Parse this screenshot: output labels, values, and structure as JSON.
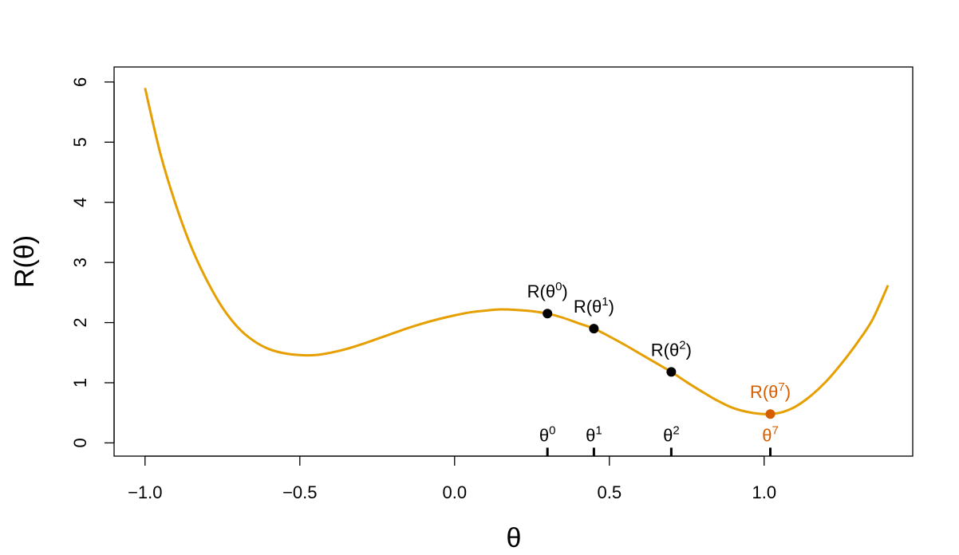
{
  "chart_data": {
    "type": "line",
    "xlabel": "θ",
    "ylabel": "R(θ)",
    "xlim": [
      -1.1,
      1.48
    ],
    "ylim": [
      -0.22,
      6.25
    ],
    "xticks": [
      -1.0,
      -0.5,
      0.0,
      0.5,
      1.0
    ],
    "xtick_labels": [
      "−1.0",
      "−0.5",
      "0.0",
      "0.5",
      "1.0"
    ],
    "yticks": [
      0,
      1,
      2,
      3,
      4,
      5,
      6
    ],
    "ytick_labels": [
      "0",
      "1",
      "2",
      "3",
      "4",
      "5",
      "6"
    ],
    "grid": false,
    "curve_color": "#E69F00",
    "highlight_color": "#D55E00",
    "curve": {
      "x": [
        -1.0,
        -0.95,
        -0.9,
        -0.85,
        -0.8,
        -0.75,
        -0.7,
        -0.65,
        -0.6,
        -0.55,
        -0.5,
        -0.45,
        -0.4,
        -0.35,
        -0.3,
        -0.25,
        -0.2,
        -0.15,
        -0.1,
        -0.05,
        0.0,
        0.05,
        0.1,
        0.15,
        0.2,
        0.25,
        0.3,
        0.35,
        0.4,
        0.45,
        0.5,
        0.55,
        0.6,
        0.65,
        0.7,
        0.75,
        0.8,
        0.85,
        0.9,
        0.95,
        1.0,
        1.05,
        1.1,
        1.15,
        1.2,
        1.25,
        1.3,
        1.35,
        1.4
      ],
      "y": [
        5.9,
        4.8,
        3.95,
        3.25,
        2.7,
        2.25,
        1.92,
        1.7,
        1.56,
        1.49,
        1.46,
        1.46,
        1.5,
        1.56,
        1.64,
        1.73,
        1.82,
        1.91,
        1.99,
        2.06,
        2.12,
        2.17,
        2.2,
        2.22,
        2.21,
        2.19,
        2.15,
        2.08,
        1.99,
        1.9,
        1.77,
        1.63,
        1.48,
        1.33,
        1.18,
        1.01,
        0.85,
        0.7,
        0.58,
        0.51,
        0.48,
        0.5,
        0.6,
        0.78,
        1.02,
        1.32,
        1.66,
        2.05,
        2.62
      ]
    },
    "points": [
      {
        "x": 0.3,
        "y": 2.15,
        "label": "R(θ",
        "sup": "0",
        "close": ")",
        "axis_label": "θ",
        "axis_sup": "0",
        "highlight": false
      },
      {
        "x": 0.45,
        "y": 1.9,
        "label": "R(θ",
        "sup": "1",
        "close": ")",
        "axis_label": "θ",
        "axis_sup": "1",
        "highlight": false
      },
      {
        "x": 0.7,
        "y": 1.18,
        "label": "R(θ",
        "sup": "2",
        "close": ")",
        "axis_label": "θ",
        "axis_sup": "2",
        "highlight": false
      },
      {
        "x": 1.02,
        "y": 0.48,
        "label": "R(θ",
        "sup": "7",
        "close": ")",
        "axis_label": "θ",
        "axis_sup": "7",
        "highlight": true
      }
    ]
  }
}
